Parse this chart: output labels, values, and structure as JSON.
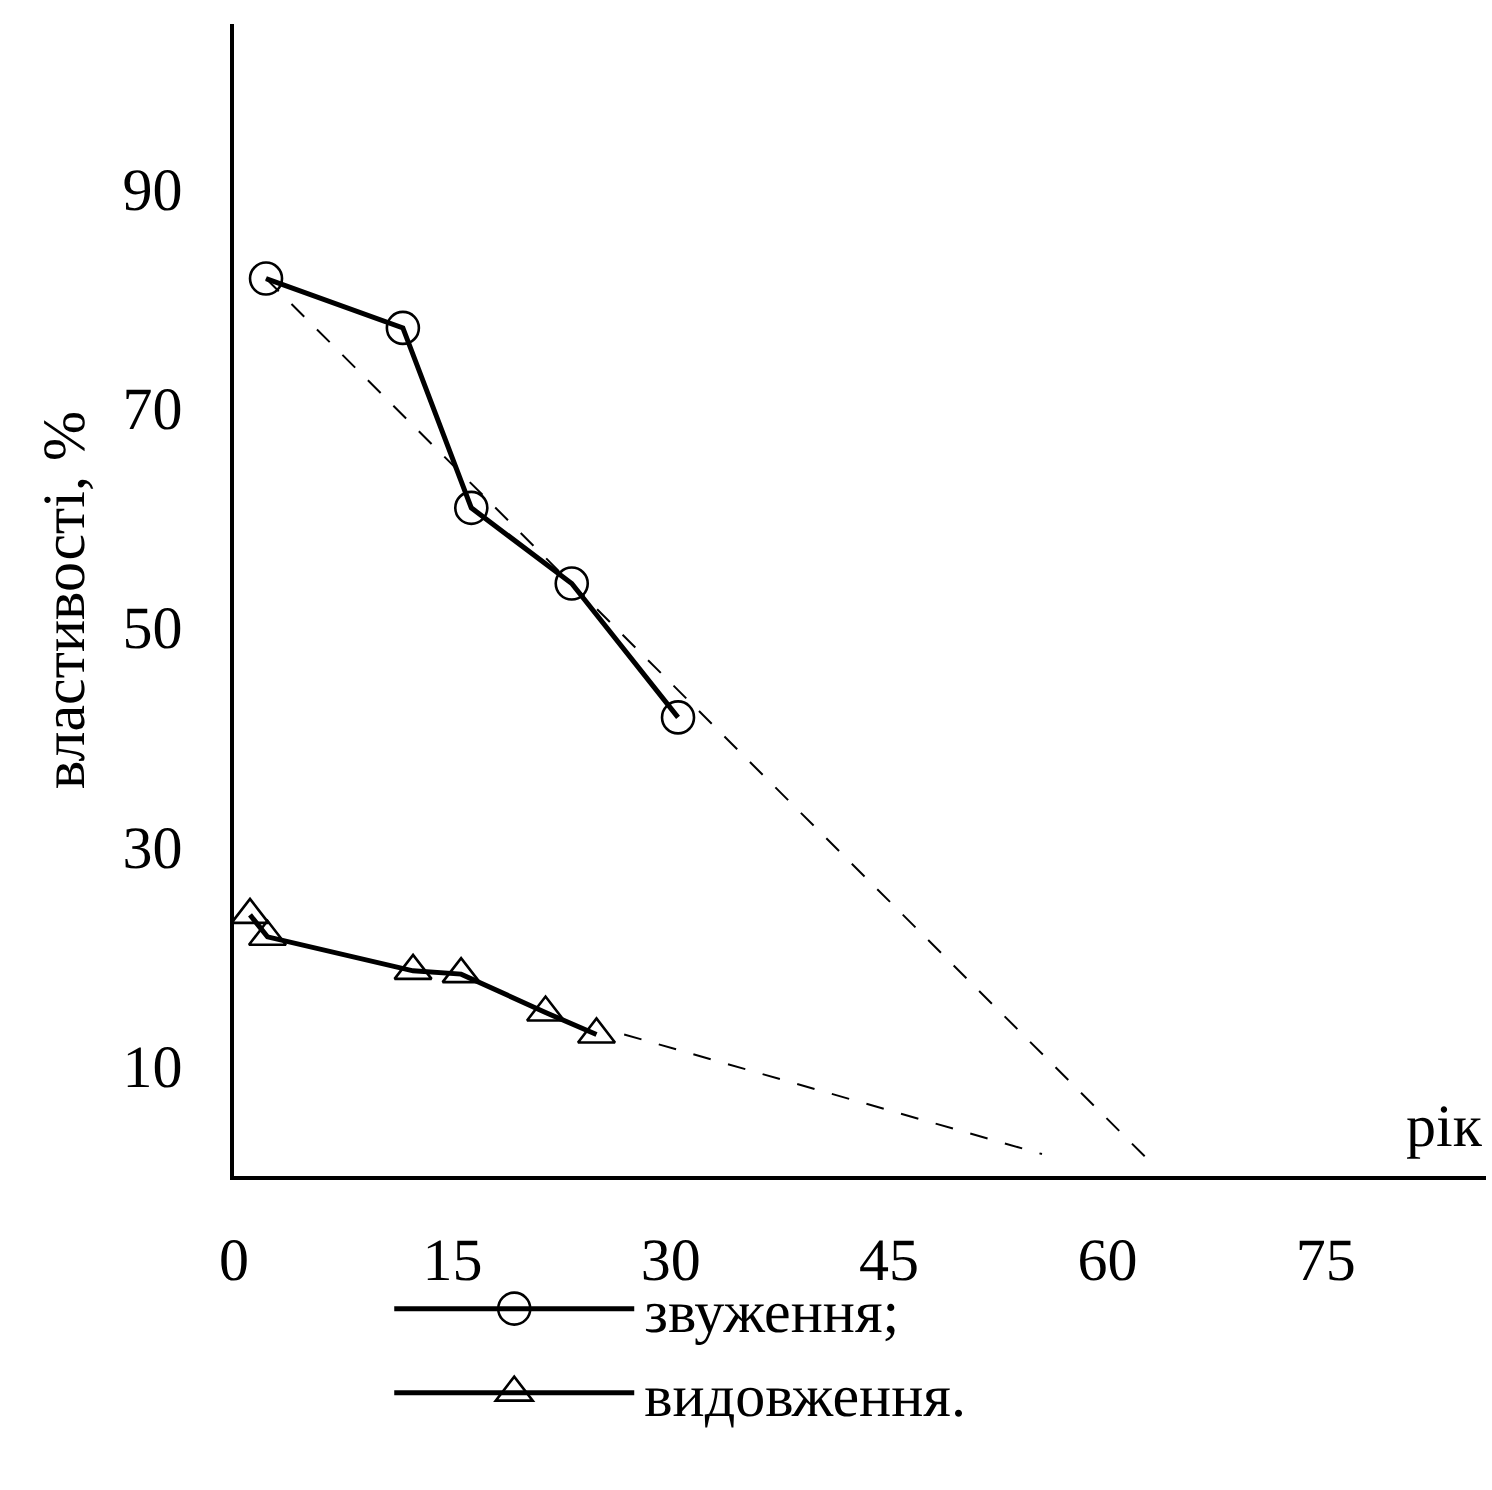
{
  "chart_data": {
    "type": "line",
    "xlabel": "рік",
    "ylabel": "властивості, %",
    "xlim": [
      0,
      86
    ],
    "ylim": [
      0,
      105
    ],
    "xticks": [
      0,
      15,
      30,
      45,
      60,
      75
    ],
    "yticks": [
      10,
      30,
      50,
      70,
      90
    ],
    "grid": false,
    "legend": "bottom",
    "series": [
      {
        "name": "звуження;",
        "color": "#000000",
        "marker": "circle",
        "x": [
          2.2,
          11.6,
          16.3,
          23.2,
          30.5
        ],
        "values": [
          81.8,
          77.3,
          60.9,
          54,
          41.8
        ]
      },
      {
        "name": "видовження.",
        "color": "#000000",
        "marker": "triangle",
        "x": [
          1.1,
          2.3,
          12.3,
          15.6,
          21.4,
          24.9
        ],
        "values": [
          23.8,
          21.8,
          18.7,
          18.4,
          14.9,
          12.9
        ]
      },
      {
        "type": "line",
        "color": "#000000",
        "marker": "none",
        "line_style": "dashed",
        "x": [
          2.2,
          62.7
        ],
        "values": [
          81.8,
          1.6
        ]
      },
      {
        "type": "line",
        "color": "#000000",
        "marker": "none",
        "line_style": "dashed",
        "x": [
          26.8,
          55.5
        ],
        "values": [
          12.9,
          2.0
        ]
      }
    ]
  }
}
